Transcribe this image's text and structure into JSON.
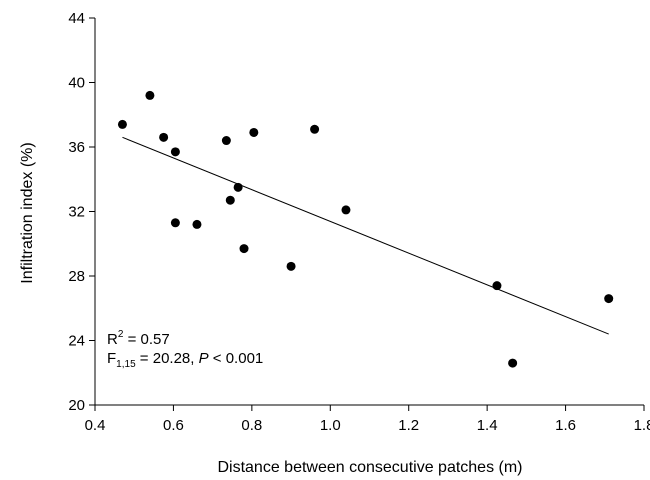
{
  "chart_data": {
    "type": "scatter",
    "xlabel": "Distance between consecutive patches (m)",
    "ylabel": "Infiltration index (%)",
    "xlim": [
      0.4,
      1.8
    ],
    "ylim": [
      20,
      44
    ],
    "x_ticks": [
      "0.4",
      "0.6",
      "0.8",
      "1.0",
      "1.2",
      "1.4",
      "1.6",
      "1.8"
    ],
    "y_ticks": [
      "20",
      "24",
      "28",
      "32",
      "36",
      "40",
      "44"
    ],
    "grid": false,
    "series": [
      {
        "points": [
          {
            "x": 0.47,
            "y": 37.4
          },
          {
            "x": 0.54,
            "y": 39.2
          },
          {
            "x": 0.575,
            "y": 36.6
          },
          {
            "x": 0.605,
            "y": 35.7
          },
          {
            "x": 0.605,
            "y": 31.3
          },
          {
            "x": 0.66,
            "y": 31.2
          },
          {
            "x": 0.735,
            "y": 36.4
          },
          {
            "x": 0.745,
            "y": 32.7
          },
          {
            "x": 0.765,
            "y": 33.5
          },
          {
            "x": 0.78,
            "y": 29.7
          },
          {
            "x": 0.805,
            "y": 36.9
          },
          {
            "x": 0.9,
            "y": 28.6
          },
          {
            "x": 0.96,
            "y": 37.1
          },
          {
            "x": 1.04,
            "y": 32.1
          },
          {
            "x": 1.425,
            "y": 27.4
          },
          {
            "x": 1.465,
            "y": 22.6
          },
          {
            "x": 1.71,
            "y": 26.6
          }
        ]
      }
    ],
    "fit_line": {
      "x": [
        0.47,
        1.71
      ],
      "y": [
        36.6,
        24.4
      ]
    },
    "annotations": {
      "r2": {
        "base": "R",
        "sup": "2",
        "rest": " = 0.57"
      },
      "stat": {
        "base": "F",
        "sub": "1,15",
        "mid": " = 20.28, ",
        "p": "P",
        "end": " < 0.001"
      }
    }
  }
}
